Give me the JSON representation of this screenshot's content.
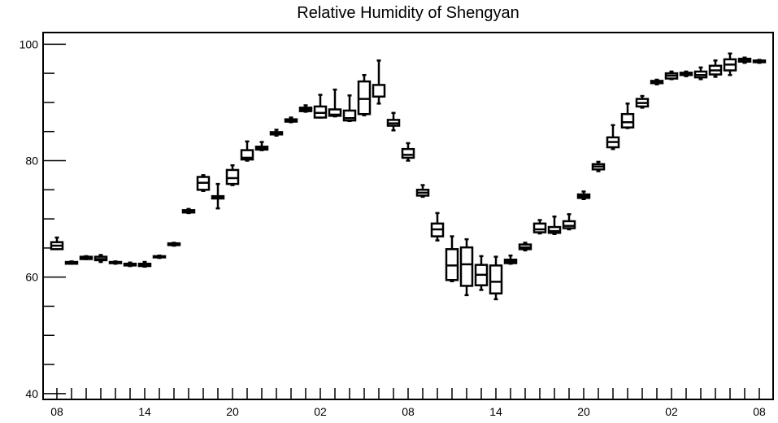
{
  "chart_data": {
    "type": "box",
    "title": "Relative Humidity of Shengyan",
    "xlabel": "",
    "ylabel": "",
    "ylim": [
      39,
      102
    ],
    "y_ticks": [
      40,
      60,
      80,
      100
    ],
    "x_tick_labels": [
      "08",
      "14",
      "20",
      "02",
      "08",
      "14",
      "20",
      "02",
      "08"
    ],
    "x_tick_label_positions": [
      0,
      6,
      12,
      18,
      24,
      30,
      36,
      42,
      48
    ],
    "grid": false,
    "colors": {
      "box": "#000000",
      "background": "#ffffff"
    },
    "boxes": [
      {
        "x": 0,
        "low": 64.8,
        "q1": 64.8,
        "median": 65.4,
        "q3": 66.0,
        "high": 66.8
      },
      {
        "x": 1,
        "low": 62.3,
        "q1": 62.3,
        "median": 62.5,
        "q3": 62.6,
        "high": 62.7
      },
      {
        "x": 2,
        "low": 63.1,
        "q1": 63.1,
        "median": 63.3,
        "q3": 63.5,
        "high": 63.6
      },
      {
        "x": 3,
        "low": 62.6,
        "q1": 62.9,
        "median": 63.1,
        "q3": 63.5,
        "high": 63.8
      },
      {
        "x": 4,
        "low": 62.3,
        "q1": 62.4,
        "median": 62.5,
        "q3": 62.6,
        "high": 62.7
      },
      {
        "x": 5,
        "low": 61.9,
        "q1": 62.0,
        "median": 62.1,
        "q3": 62.3,
        "high": 62.5
      },
      {
        "x": 6,
        "low": 61.8,
        "q1": 61.9,
        "median": 62.1,
        "q3": 62.3,
        "high": 62.6
      },
      {
        "x": 7,
        "low": 63.3,
        "q1": 63.4,
        "median": 63.5,
        "q3": 63.6,
        "high": 63.7
      },
      {
        "x": 8,
        "low": 65.4,
        "q1": 65.5,
        "median": 65.6,
        "q3": 65.8,
        "high": 65.9
      },
      {
        "x": 9,
        "low": 71.0,
        "q1": 71.1,
        "median": 71.3,
        "q3": 71.5,
        "high": 71.7
      },
      {
        "x": 10,
        "low": 74.8,
        "q1": 75.0,
        "median": 76.2,
        "q3": 77.2,
        "high": 77.5
      },
      {
        "x": 11,
        "low": 71.8,
        "q1": 73.5,
        "median": 73.7,
        "q3": 73.9,
        "high": 76.0
      },
      {
        "x": 12,
        "low": 75.8,
        "q1": 76.0,
        "median": 77.0,
        "q3": 78.4,
        "high": 79.2
      },
      {
        "x": 13,
        "low": 80.0,
        "q1": 80.2,
        "median": 80.5,
        "q3": 81.8,
        "high": 83.3
      },
      {
        "x": 14,
        "low": 81.8,
        "q1": 81.9,
        "median": 82.1,
        "q3": 82.4,
        "high": 83.2
      },
      {
        "x": 15,
        "low": 84.3,
        "q1": 84.5,
        "median": 84.7,
        "q3": 84.9,
        "high": 85.3
      },
      {
        "x": 16,
        "low": 86.6,
        "q1": 86.7,
        "median": 86.9,
        "q3": 87.1,
        "high": 87.4
      },
      {
        "x": 17,
        "low": 88.4,
        "q1": 88.5,
        "median": 88.8,
        "q3": 89.1,
        "high": 89.5
      },
      {
        "x": 18,
        "low": 87.4,
        "q1": 87.4,
        "median": 88.2,
        "q3": 89.3,
        "high": 91.3
      },
      {
        "x": 19,
        "low": 87.6,
        "q1": 87.7,
        "median": 87.9,
        "q3": 88.8,
        "high": 92.2
      },
      {
        "x": 20,
        "low": 86.8,
        "q1": 86.9,
        "median": 87.3,
        "q3": 88.6,
        "high": 91.2
      },
      {
        "x": 21,
        "low": 87.8,
        "q1": 88.0,
        "median": 90.6,
        "q3": 93.6,
        "high": 94.7
      },
      {
        "x": 22,
        "low": 89.8,
        "q1": 91.0,
        "median": 91.0,
        "q3": 93.0,
        "high": 97.2
      },
      {
        "x": 23,
        "low": 85.2,
        "q1": 86.0,
        "median": 86.4,
        "q3": 87.0,
        "high": 88.2
      },
      {
        "x": 24,
        "low": 80.0,
        "q1": 80.5,
        "median": 81.0,
        "q3": 82.0,
        "high": 83.0
      },
      {
        "x": 25,
        "low": 73.8,
        "q1": 74.0,
        "median": 74.5,
        "q3": 75.0,
        "high": 75.8
      },
      {
        "x": 26,
        "low": 66.3,
        "q1": 67.0,
        "median": 68.2,
        "q3": 69.2,
        "high": 71.0
      },
      {
        "x": 27,
        "low": 59.3,
        "q1": 59.5,
        "median": 62.0,
        "q3": 64.8,
        "high": 67.0
      },
      {
        "x": 28,
        "low": 56.9,
        "q1": 58.5,
        "median": 62.2,
        "q3": 65.1,
        "high": 66.5
      },
      {
        "x": 29,
        "low": 57.8,
        "q1": 58.6,
        "median": 60.4,
        "q3": 62.1,
        "high": 63.6
      },
      {
        "x": 30,
        "low": 56.2,
        "q1": 57.2,
        "median": 59.2,
        "q3": 62.0,
        "high": 63.5
      },
      {
        "x": 31,
        "low": 62.3,
        "q1": 62.4,
        "median": 62.7,
        "q3": 63.0,
        "high": 63.7
      },
      {
        "x": 32,
        "low": 64.6,
        "q1": 64.8,
        "median": 65.1,
        "q3": 65.6,
        "high": 65.9
      },
      {
        "x": 33,
        "low": 67.5,
        "q1": 67.7,
        "median": 68.2,
        "q3": 69.2,
        "high": 69.8
      },
      {
        "x": 34,
        "low": 67.4,
        "q1": 67.6,
        "median": 67.9,
        "q3": 68.6,
        "high": 70.4
      },
      {
        "x": 35,
        "low": 68.2,
        "q1": 68.4,
        "median": 68.8,
        "q3": 69.6,
        "high": 70.8
      },
      {
        "x": 36,
        "low": 73.4,
        "q1": 73.6,
        "median": 73.9,
        "q3": 74.2,
        "high": 74.7
      },
      {
        "x": 37,
        "low": 78.2,
        "q1": 78.5,
        "median": 79.0,
        "q3": 79.4,
        "high": 79.8
      },
      {
        "x": 38,
        "low": 82.0,
        "q1": 82.3,
        "median": 83.2,
        "q3": 84.0,
        "high": 86.1
      },
      {
        "x": 39,
        "low": 85.6,
        "q1": 85.7,
        "median": 86.6,
        "q3": 88.0,
        "high": 89.8
      },
      {
        "x": 40,
        "low": 89.1,
        "q1": 89.3,
        "median": 89.9,
        "q3": 90.6,
        "high": 91.1
      },
      {
        "x": 41,
        "low": 93.1,
        "q1": 93.3,
        "median": 93.5,
        "q3": 93.7,
        "high": 93.9
      },
      {
        "x": 42,
        "low": 94.0,
        "q1": 94.1,
        "median": 94.6,
        "q3": 95.0,
        "high": 95.3
      },
      {
        "x": 43,
        "low": 94.5,
        "q1": 94.7,
        "median": 94.9,
        "q3": 95.1,
        "high": 95.3
      },
      {
        "x": 44,
        "low": 94.0,
        "q1": 94.3,
        "median": 94.7,
        "q3": 95.3,
        "high": 96.0
      },
      {
        "x": 45,
        "low": 94.4,
        "q1": 94.8,
        "median": 95.5,
        "q3": 96.3,
        "high": 97.2
      },
      {
        "x": 46,
        "low": 94.7,
        "q1": 95.5,
        "median": 96.5,
        "q3": 97.4,
        "high": 98.4
      },
      {
        "x": 47,
        "low": 96.8,
        "q1": 97.0,
        "median": 97.3,
        "q3": 97.5,
        "high": 97.7
      },
      {
        "x": 48,
        "low": 96.8,
        "q1": 96.9,
        "median": 97.0,
        "q3": 97.2,
        "high": 97.3
      }
    ]
  }
}
